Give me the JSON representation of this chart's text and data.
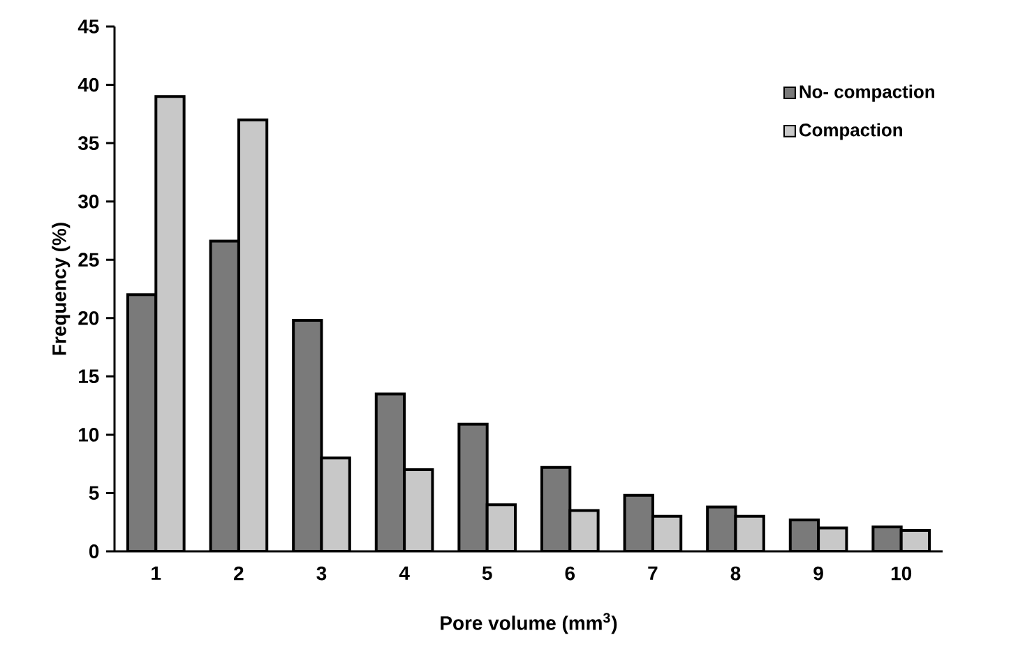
{
  "chart_data": {
    "type": "bar",
    "xlabel": "Pore volume (mm$^{3}$)",
    "ylabel": "Frequency (%)",
    "categories": [
      "1",
      "2",
      "3",
      "4",
      "5",
      "6",
      "7",
      "8",
      "9",
      "10"
    ],
    "series": [
      {
        "name": "No- compaction",
        "color": "#7a7a7a",
        "values": [
          22,
          26.6,
          19.8,
          13.5,
          10.9,
          7.2,
          4.8,
          3.8,
          2.7,
          2.1
        ]
      },
      {
        "name": "Compaction",
        "color": "#c8c8c8",
        "values": [
          39,
          37,
          8,
          7,
          4,
          3.5,
          3,
          3,
          2,
          1.8
        ]
      }
    ],
    "ylim": [
      0,
      45
    ],
    "yticks": [
      0,
      5,
      10,
      15,
      20,
      25,
      30,
      35,
      40,
      45
    ],
    "legend": "top right",
    "grid": false
  }
}
